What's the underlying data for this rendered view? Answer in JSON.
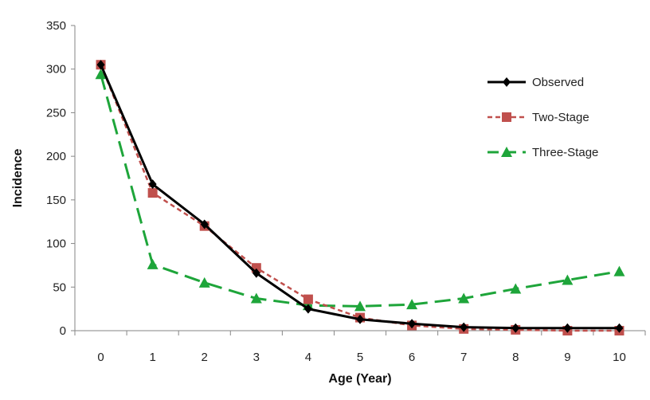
{
  "chart_data": {
    "type": "line",
    "title": "",
    "xlabel": "Age  (Year)",
    "ylabel": "Incidence",
    "x": [
      0,
      1,
      2,
      3,
      4,
      5,
      6,
      7,
      8,
      9,
      10
    ],
    "xlim": [
      -0.5,
      10.5
    ],
    "ylim": [
      0,
      350
    ],
    "yticks": [
      0,
      50,
      100,
      150,
      200,
      250,
      300,
      350
    ],
    "grid": false,
    "legend_position": "top-right",
    "series": [
      {
        "name": "Observed",
        "values": [
          305,
          168,
          122,
          66,
          25,
          13,
          8,
          4,
          3,
          3,
          3
        ],
        "color": "#000000",
        "marker": "diamond",
        "line_style": "solid"
      },
      {
        "name": "Two-Stage",
        "values": [
          305,
          158,
          120,
          72,
          36,
          15,
          6,
          2,
          1,
          0,
          0
        ],
        "color": "#c0504d",
        "marker": "square",
        "line_style": "short-dash"
      },
      {
        "name": "Three-Stage",
        "values": [
          294,
          76,
          55,
          37,
          29,
          28,
          30,
          37,
          48,
          58,
          68
        ],
        "color": "#1ea53a",
        "marker": "triangle",
        "line_style": "long-dash"
      }
    ]
  }
}
